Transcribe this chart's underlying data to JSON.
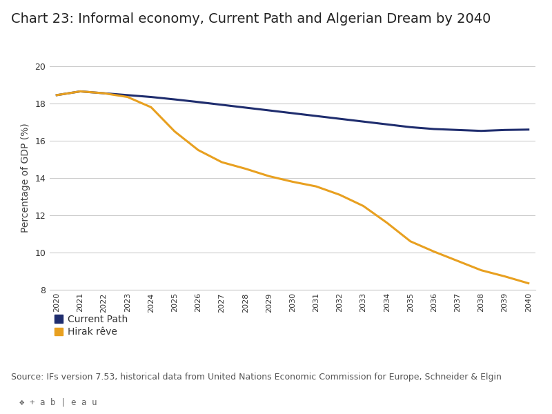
{
  "title": "Chart 23: Informal economy, Current Path and Algerian Dream by 2040",
  "ylabel": "Percentage of GDP (%)",
  "source": "Source: IFs version 7.53, historical data from United Nations Economic Commission for Europe, Schneider & Elgin",
  "years": [
    2020,
    2021,
    2022,
    2023,
    2024,
    2025,
    2026,
    2027,
    2028,
    2029,
    2030,
    2031,
    2032,
    2033,
    2034,
    2035,
    2036,
    2037,
    2038,
    2039,
    2040
  ],
  "current_path": [
    18.45,
    18.65,
    18.55,
    18.45,
    18.35,
    18.22,
    18.08,
    17.93,
    17.78,
    17.63,
    17.48,
    17.33,
    17.18,
    17.03,
    16.88,
    16.73,
    16.63,
    16.58,
    16.53,
    16.58,
    16.6
  ],
  "hirak_reve": [
    18.45,
    18.65,
    18.55,
    18.35,
    17.8,
    16.5,
    15.5,
    14.85,
    14.5,
    14.1,
    13.8,
    13.55,
    13.1,
    12.5,
    11.6,
    10.6,
    10.05,
    9.55,
    9.05,
    8.72,
    8.35
  ],
  "current_path_color": "#1f2d6e",
  "hirak_reve_color": "#e8a020",
  "background_color": "#ffffff",
  "plot_bg_color": "#ffffff",
  "grid_color": "#cccccc",
  "ylim": [
    8,
    20
  ],
  "yticks": [
    8,
    10,
    12,
    14,
    16,
    18,
    20
  ],
  "legend_current_path": "Current Path",
  "legend_hirak": "Hirak rêve",
  "title_fontsize": 14,
  "axis_fontsize": 10,
  "legend_fontsize": 10,
  "source_fontsize": 9,
  "line_width": 2.2,
  "tableau_bg": "#e8e8e8"
}
